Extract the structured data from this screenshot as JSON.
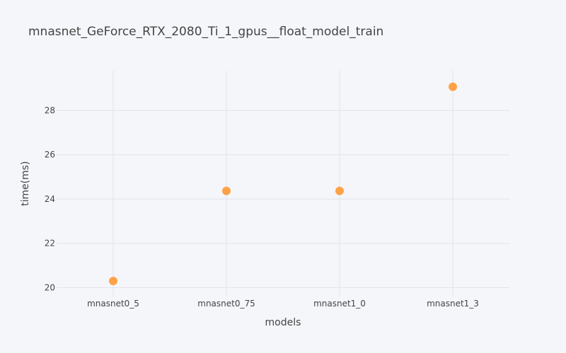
{
  "chart_data": {
    "type": "scatter",
    "title": "mnasnet_GeForce_RTX_2080_Ti_1_gpus__float_model_train",
    "xlabel": "models",
    "ylabel": "time(ms)",
    "categories": [
      "mnasnet0_5",
      "mnasnet0_75",
      "mnasnet1_0",
      "mnasnet1_3"
    ],
    "series": [
      {
        "values": [
          20.3,
          24.37,
          24.37,
          29.07
        ]
      }
    ],
    "ylim": [
      19.6,
      29.8
    ],
    "yticks": [
      20,
      22,
      24,
      26,
      28
    ],
    "grid": true,
    "marker_color": "#ff9933",
    "background": "#f5f6fa"
  }
}
